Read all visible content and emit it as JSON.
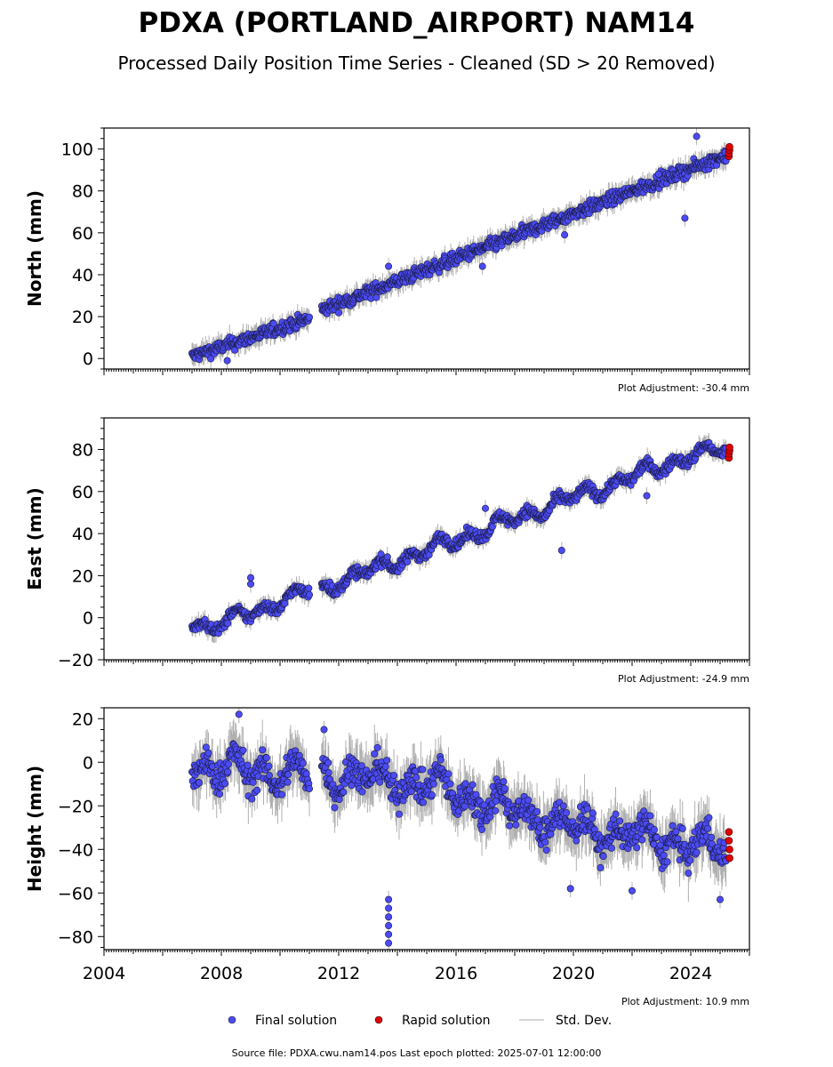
{
  "title": "PDXA (PORTLAND_AIRPORT) NAM14",
  "subtitle": "Processed Daily Position Time Series - Cleaned (SD > 20 Removed)",
  "legend": {
    "final": "Final solution",
    "rapid": "Rapid solution",
    "std": "Std. Dev."
  },
  "source_note": "Source file: PDXA.cwu.nam14.pos  Last epoch plotted: 2025-07-01 12:00:00",
  "colors": {
    "final": "#4b4bf5",
    "rapid": "#e00000",
    "std": "#b0b0b0"
  },
  "chart_data": [
    {
      "type": "scatter",
      "ylabel": "North (mm)",
      "adjustment": "Plot Adjustment: -30.4 mm",
      "xlim": [
        2004,
        2026
      ],
      "ylim": [
        -5,
        110
      ],
      "yticks": [
        0,
        20,
        40,
        60,
        80,
        100
      ],
      "gaps": [
        [
          2011.0,
          2011.4
        ]
      ],
      "series": [
        {
          "key": "final",
          "trend": [
            [
              2007.0,
              1
            ],
            [
              2011.0,
              19
            ],
            [
              2011.4,
              23
            ],
            [
              2025.2,
              97
            ]
          ],
          "noise": 3
        },
        {
          "key": "rapid",
          "points": [
            [
              2025.3,
              96.5
            ],
            [
              2025.3,
              98
            ],
            [
              2025.32,
              99.5
            ],
            [
              2025.32,
              101
            ]
          ]
        }
      ],
      "outliers": [
        [
          2008.2,
          -1
        ],
        [
          2013.7,
          44
        ],
        [
          2016.9,
          44
        ],
        [
          2019.7,
          59
        ],
        [
          2022.9,
          88
        ],
        [
          2023.8,
          67
        ],
        [
          2024.2,
          106
        ]
      ]
    },
    {
      "type": "scatter",
      "ylabel": "East (mm)",
      "adjustment": "Plot Adjustment: -24.9 mm",
      "xlim": [
        2004,
        2026
      ],
      "ylim": [
        -20,
        95
      ],
      "yticks": [
        -20,
        0,
        20,
        40,
        60,
        80
      ],
      "gaps": [
        [
          2011.0,
          2011.4
        ]
      ],
      "series": [
        {
          "key": "final",
          "trend": [
            [
              2007.0,
              -1
            ],
            [
              2007.6,
              -5
            ],
            [
              2011.0,
              13
            ],
            [
              2011.4,
              14
            ],
            [
              2024.0,
              77
            ],
            [
              2025.2,
              80
            ]
          ],
          "noise": 2.5,
          "wiggle": 4
        },
        {
          "key": "rapid",
          "points": [
            [
              2025.3,
              76
            ],
            [
              2025.3,
              78
            ],
            [
              2025.32,
              79.5
            ],
            [
              2025.32,
              81
            ]
          ]
        }
      ],
      "outliers": [
        [
          2009.0,
          19
        ],
        [
          2009.0,
          16
        ],
        [
          2019.6,
          32
        ],
        [
          2022.5,
          58
        ],
        [
          2017.0,
          52
        ]
      ]
    },
    {
      "type": "scatter",
      "ylabel": "Height (mm)",
      "adjustment": "Plot Adjustment: 10.9 mm",
      "xlim": [
        2004,
        2026
      ],
      "xticks": [
        2004,
        2008,
        2012,
        2016,
        2020,
        2024
      ],
      "ylim": [
        -86,
        25
      ],
      "yticks": [
        -80,
        -60,
        -40,
        -20,
        0,
        20
      ],
      "gaps": [
        [
          2011.0,
          2011.4
        ]
      ],
      "series": [
        {
          "key": "final",
          "trend": [
            [
              2007.0,
              -2
            ],
            [
              2011.0,
              -6
            ],
            [
              2011.4,
              -5
            ],
            [
              2015.0,
              -10
            ],
            [
              2020.0,
              -30
            ],
            [
              2025.2,
              -40
            ]
          ],
          "noise": 7,
          "wiggle": 8
        },
        {
          "key": "rapid",
          "points": [
            [
              2025.3,
              -32
            ],
            [
              2025.3,
              -36
            ],
            [
              2025.32,
              -40
            ],
            [
              2025.32,
              -44
            ]
          ]
        }
      ],
      "outliers": [
        [
          2013.7,
          -63
        ],
        [
          2013.7,
          -67
        ],
        [
          2013.7,
          -71
        ],
        [
          2013.7,
          -75
        ],
        [
          2013.7,
          -79
        ],
        [
          2013.7,
          -83
        ],
        [
          2008.6,
          22
        ],
        [
          2011.5,
          15
        ],
        [
          2025.0,
          -63
        ],
        [
          2019.9,
          -58
        ],
        [
          2022.0,
          -59
        ]
      ]
    }
  ]
}
